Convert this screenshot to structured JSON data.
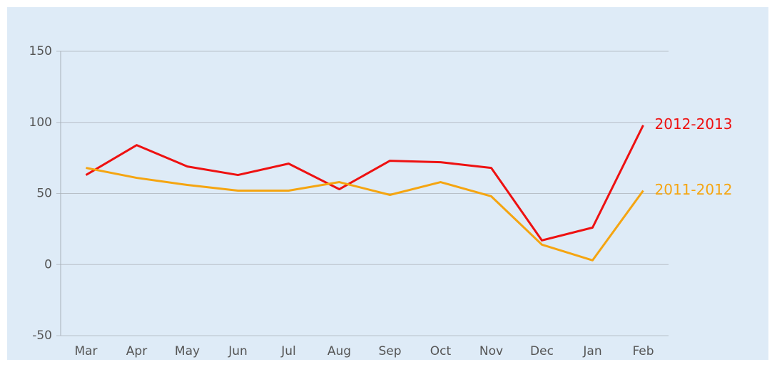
{
  "chart_data": {
    "type": "line",
    "categories": [
      "Mar",
      "Apr",
      "May",
      "Jun",
      "Jul",
      "Aug",
      "Sep",
      "Oct",
      "Nov",
      "Dec",
      "Jan",
      "Feb"
    ],
    "series": [
      {
        "name": "2012-2013",
        "color": "#ee1111",
        "values": [
          63,
          84,
          69,
          63,
          71,
          53,
          73,
          72,
          68,
          17,
          26,
          98
        ]
      },
      {
        "name": "2011-2012",
        "color": "#f5a511",
        "values": [
          68,
          61,
          56,
          52,
          52,
          58,
          49,
          58,
          48,
          14,
          3,
          52
        ]
      }
    ],
    "ylim": [
      -50,
      150
    ],
    "yticks": [
      -50,
      0,
      50,
      100,
      150
    ],
    "grid": true
  }
}
